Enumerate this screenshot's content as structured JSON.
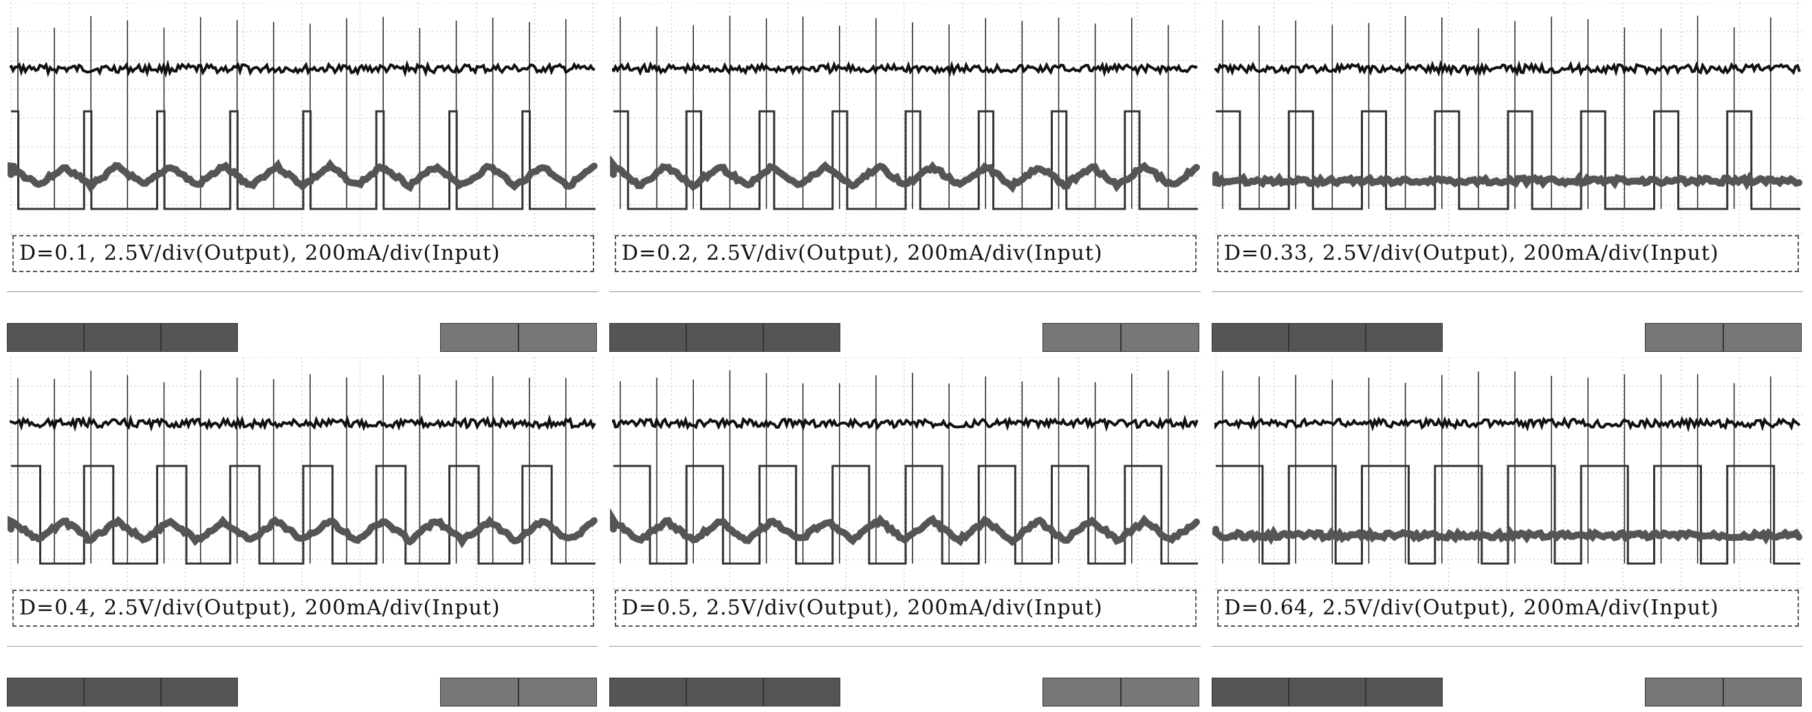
{
  "chart_data": [
    {
      "type": "line",
      "caption": "D=0.1, 2.5V/div(Output), 200mA/div(Input)",
      "duty": 0.1,
      "waveform": "triangle"
    },
    {
      "type": "line",
      "caption": "D=0.2, 2.5V/div(Output), 200mA/div(Input)",
      "duty": 0.2,
      "waveform": "triangle"
    },
    {
      "type": "line",
      "caption": "D=0.33, 2.5V/div(Output), 200mA/div(Input)",
      "duty": 0.33,
      "waveform": "flat"
    },
    {
      "type": "line",
      "caption": "D=0.4, 2.5V/div(Output), 200mA/div(Input)",
      "duty": 0.4,
      "waveform": "triangle"
    },
    {
      "type": "line",
      "caption": "D=0.5, 2.5V/div(Output), 200mA/div(Input)",
      "duty": 0.5,
      "waveform": "triangle"
    },
    {
      "type": "line",
      "caption": "D=0.64, 2.5V/div(Output), 200mA/div(Input)",
      "duty": 0.64,
      "waveform": "flat"
    }
  ],
  "colors": {
    "trace": "#111111",
    "grid": "#bbbbbb",
    "current": "#555555"
  }
}
